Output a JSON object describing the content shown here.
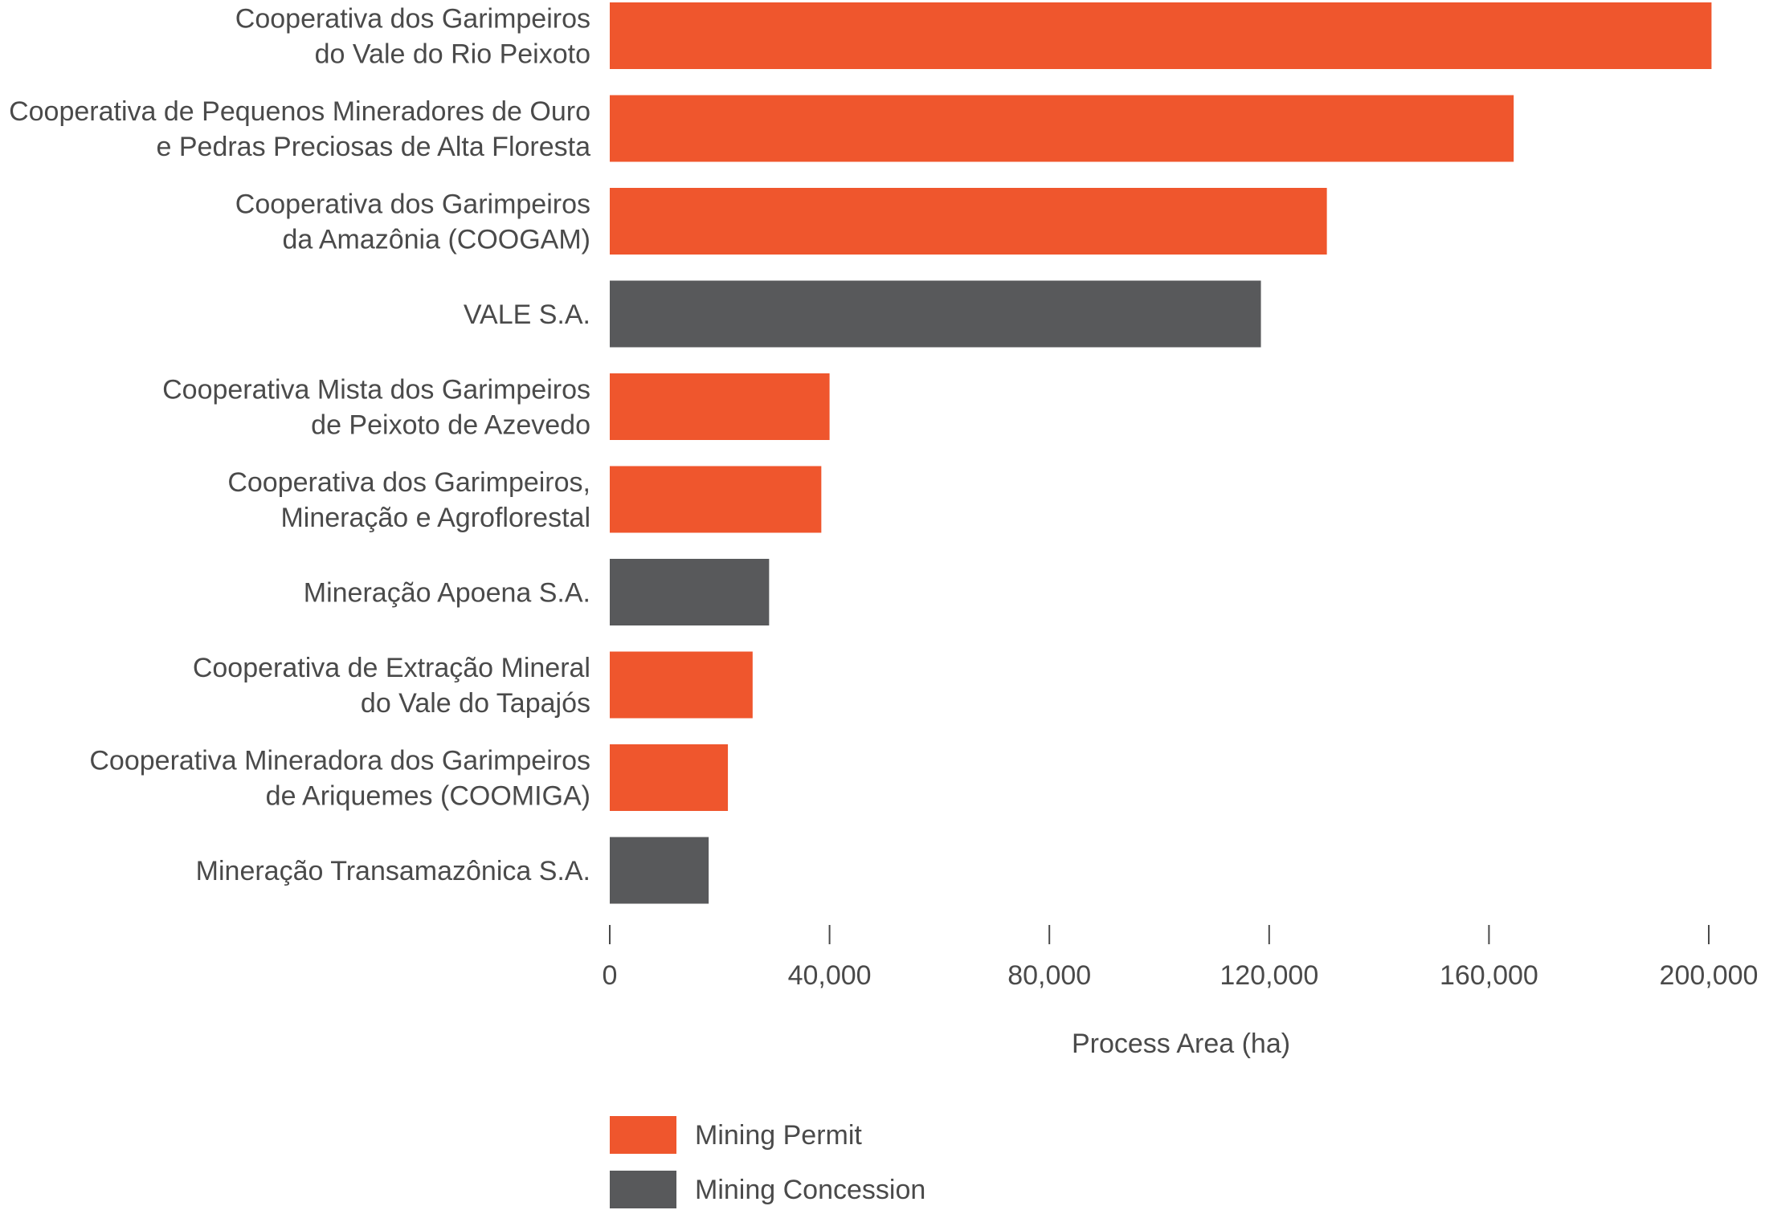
{
  "chart_data": {
    "type": "bar",
    "orientation": "horizontal",
    "categories": [
      [
        "Cooperativa dos Garimpeiros",
        "do Vale do Rio Peixoto"
      ],
      [
        "Cooperativa de Pequenos Mineradores de Ouro",
        "e Pedras Preciosas de Alta Floresta"
      ],
      [
        "Cooperativa dos Garimpeiros",
        "da Amazônia (COOGAM)"
      ],
      [
        "VALE S.A."
      ],
      [
        "Cooperativa Mista dos Garimpeiros",
        "de Peixoto de Azevedo"
      ],
      [
        "Cooperativa dos Garimpeiros,",
        "Mineração e Agroflorestal"
      ],
      [
        "Mineração Apoena S.A."
      ],
      [
        "Cooperativa de Extração Mineral",
        "do Vale do Tapajós"
      ],
      [
        "Cooperativa Mineradora dos Garimpeiros",
        "de Ariquemes (COOMIGA)"
      ],
      [
        "Mineração Transamazônica S.A."
      ]
    ],
    "values": [
      200500,
      164500,
      130500,
      118500,
      40000,
      38500,
      29000,
      26000,
      21500,
      18000
    ],
    "bar_type": [
      0,
      0,
      0,
      1,
      0,
      0,
      1,
      0,
      0,
      1
    ],
    "series": [
      {
        "name": "Mining Permit",
        "color": "#ef562d"
      },
      {
        "name": "Mining Concession",
        "color": "#58595b"
      }
    ],
    "xlabel": "Process Area (ha)",
    "xticks": [
      0,
      40000,
      80000,
      120000,
      160000,
      200000
    ],
    "xtick_labels": [
      "0",
      "40,000",
      "80,000",
      "120,000",
      "160,000",
      "200,000"
    ],
    "xlim": [
      0,
      200000
    ],
    "grid": false,
    "legend": "bottom"
  }
}
